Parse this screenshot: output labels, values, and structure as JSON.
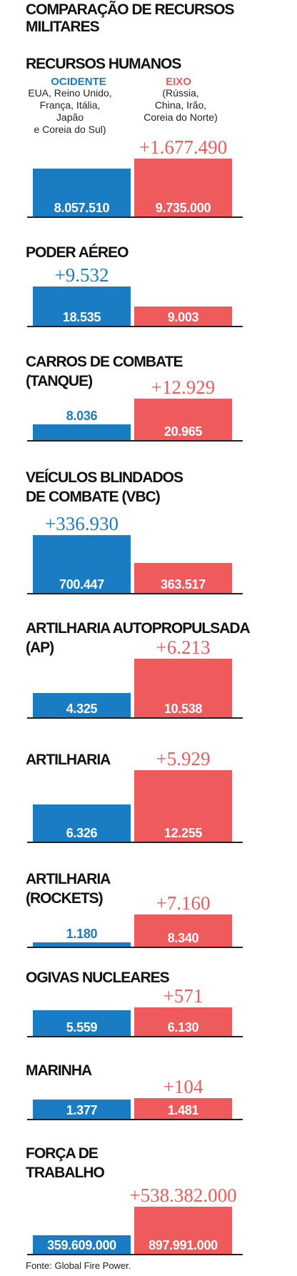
{
  "title": "COMPARAÇÃO DE RECURSOS MILITARES",
  "source": "Fonte: Global Fire Power.",
  "legend": {
    "west": {
      "name": "OCIDENTE",
      "desc": "EUA, Reino Unido,\nFrança, Itália,\nJapão\ne Coreia do Sul)"
    },
    "axis": {
      "name": "EIXO",
      "desc": "(Rússia,\nChina, Irão,\nCoreia do Norte)"
    }
  },
  "colors": {
    "west": "#1a7dc4",
    "axis": "#ef5a5c",
    "text": "#111111"
  },
  "chart_data": [
    {
      "type": "bar",
      "title": "RECURSOS HUMANOS",
      "categories": [
        "OCIDENTE",
        "EIXO"
      ],
      "values": [
        8057510,
        9735000
      ],
      "labels": [
        "8.057.510",
        "9.735.000"
      ],
      "difference": "+1.677.490"
    },
    {
      "type": "bar",
      "title": "PODER AÉREO",
      "categories": [
        "OCIDENTE",
        "EIXO"
      ],
      "values": [
        18535,
        9003
      ],
      "labels": [
        "18.535",
        "9.003"
      ],
      "difference": "+9.532"
    },
    {
      "type": "bar",
      "title": "CARROS DE COMBATE\n(TANQUE)",
      "categories": [
        "OCIDENTE",
        "EIXO"
      ],
      "values": [
        8036,
        20965
      ],
      "labels": [
        "8.036",
        "20.965"
      ],
      "difference": "+12.929"
    },
    {
      "type": "bar",
      "title": "VEÍCULOS BLINDADOS\nDE COMBATE (VBC)",
      "categories": [
        "OCIDENTE",
        "EIXO"
      ],
      "values": [
        700447,
        363517
      ],
      "labels": [
        "700.447",
        "363.517"
      ],
      "difference": "+336.930"
    },
    {
      "type": "bar",
      "title": "ARTILHARIA AUTOPROPULSADA\n(AP)",
      "categories": [
        "OCIDENTE",
        "EIXO"
      ],
      "values": [
        4325,
        10538
      ],
      "labels": [
        "4.325",
        "10.538"
      ],
      "difference": "+6.213"
    },
    {
      "type": "bar",
      "title": "ARTILHARIA",
      "categories": [
        "OCIDENTE",
        "EIXO"
      ],
      "values": [
        6326,
        12255
      ],
      "labels": [
        "6.326",
        "12.255"
      ],
      "difference": "+5.929"
    },
    {
      "type": "bar",
      "title": "ARTILHARIA\n(ROCKETS)",
      "categories": [
        "OCIDENTE",
        "EIXO"
      ],
      "values": [
        1180,
        8340
      ],
      "labels": [
        "1.180",
        "8.340"
      ],
      "difference": "+7.160"
    },
    {
      "type": "bar",
      "title": "OGIVAS NUCLEARES",
      "categories": [
        "OCIDENTE",
        "EIXO"
      ],
      "values": [
        5559,
        6130
      ],
      "labels": [
        "5.559",
        "6.130"
      ],
      "difference": "+571"
    },
    {
      "type": "bar",
      "title": "MARINHA",
      "categories": [
        "OCIDENTE",
        "EIXO"
      ],
      "values": [
        1377,
        1481
      ],
      "labels": [
        "1.377",
        "1.481"
      ],
      "difference": "+104"
    },
    {
      "type": "bar",
      "title": "FORÇA DE\nTRABALHO",
      "categories": [
        "OCIDENTE",
        "EIXO"
      ],
      "values": [
        359609000,
        897991000
      ],
      "labels": [
        "359.609.000",
        "897.991.000"
      ],
      "difference": "+538.382.000"
    }
  ]
}
